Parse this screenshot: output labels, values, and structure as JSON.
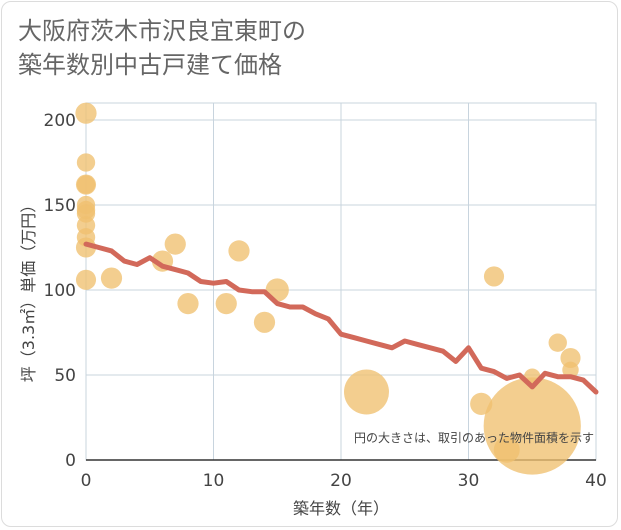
{
  "title_line1": "大阪府茨木市沢良宜東町の",
  "title_line2": "築年数別中古戸建て価格",
  "note": "円の大きさは、取引のあった物件面積を示す",
  "colors": {
    "line": "#d2695a",
    "bubble": "#f0c070",
    "grid": "#c8d4de",
    "plot_bg": "#ffffff"
  },
  "chart_data": {
    "type": "scatter",
    "title": "大阪府茨木市沢良宜東町の築年数別中古戸建て価格",
    "xlabel": "築年数（年）",
    "ylabel": "坪（3.3㎡）単価（万円）",
    "xlim": [
      0,
      40
    ],
    "ylim": [
      0,
      210
    ],
    "x_ticks": [
      0,
      10,
      20,
      30,
      40
    ],
    "y_ticks": [
      0,
      50,
      100,
      150,
      200
    ],
    "grid": true,
    "series": [
      {
        "kind": "bubble",
        "points": [
          {
            "x": 0,
            "y": 204,
            "s": 2
          },
          {
            "x": 0,
            "y": 175,
            "s": 1.5
          },
          {
            "x": 0,
            "y": 162,
            "s": 1.8
          },
          {
            "x": 0,
            "y": 162,
            "s": 1.5
          },
          {
            "x": 0,
            "y": 150,
            "s": 1.5
          },
          {
            "x": 0,
            "y": 147,
            "s": 1.5
          },
          {
            "x": 0,
            "y": 145,
            "s": 1.5
          },
          {
            "x": 0,
            "y": 138,
            "s": 1.5
          },
          {
            "x": 0,
            "y": 131,
            "s": 1.5
          },
          {
            "x": 0,
            "y": 125,
            "s": 1.8
          },
          {
            "x": 0,
            "y": 106,
            "s": 1.8
          },
          {
            "x": 2,
            "y": 107,
            "s": 2
          },
          {
            "x": 6,
            "y": 117,
            "s": 2
          },
          {
            "x": 7,
            "y": 127,
            "s": 2
          },
          {
            "x": 8,
            "y": 92,
            "s": 2
          },
          {
            "x": 11,
            "y": 92,
            "s": 2
          },
          {
            "x": 12,
            "y": 123,
            "s": 2
          },
          {
            "x": 14,
            "y": 81,
            "s": 2
          },
          {
            "x": 15,
            "y": 100,
            "s": 2.4
          },
          {
            "x": 22,
            "y": 40,
            "s": 9
          },
          {
            "x": 31,
            "y": 33,
            "s": 2.2
          },
          {
            "x": 32,
            "y": 108,
            "s": 1.8
          },
          {
            "x": 33,
            "y": 6,
            "s": 3
          },
          {
            "x": 35,
            "y": 20,
            "s": 42
          },
          {
            "x": 35,
            "y": 49,
            "s": 1.2
          },
          {
            "x": 37,
            "y": 69,
            "s": 1.5
          },
          {
            "x": 38,
            "y": 60,
            "s": 1.8
          },
          {
            "x": 38,
            "y": 53,
            "s": 1.2
          }
        ]
      },
      {
        "kind": "line",
        "x": [
          0,
          1,
          2,
          3,
          4,
          5,
          6,
          7,
          8,
          9,
          10,
          11,
          12,
          13,
          14,
          15,
          16,
          17,
          18,
          19,
          20,
          21,
          22,
          23,
          24,
          25,
          26,
          27,
          28,
          29,
          30,
          31,
          32,
          33,
          34,
          35,
          36,
          37,
          38,
          39,
          40
        ],
        "y": [
          127,
          125,
          123,
          117,
          115,
          119,
          114,
          112,
          110,
          105,
          104,
          105,
          100,
          99,
          99,
          92,
          90,
          90,
          86,
          83,
          74,
          72,
          70,
          68,
          66,
          70,
          68,
          66,
          64,
          58,
          66,
          54,
          52,
          48,
          50,
          43,
          51,
          49,
          49,
          47,
          40
        ]
      }
    ]
  }
}
